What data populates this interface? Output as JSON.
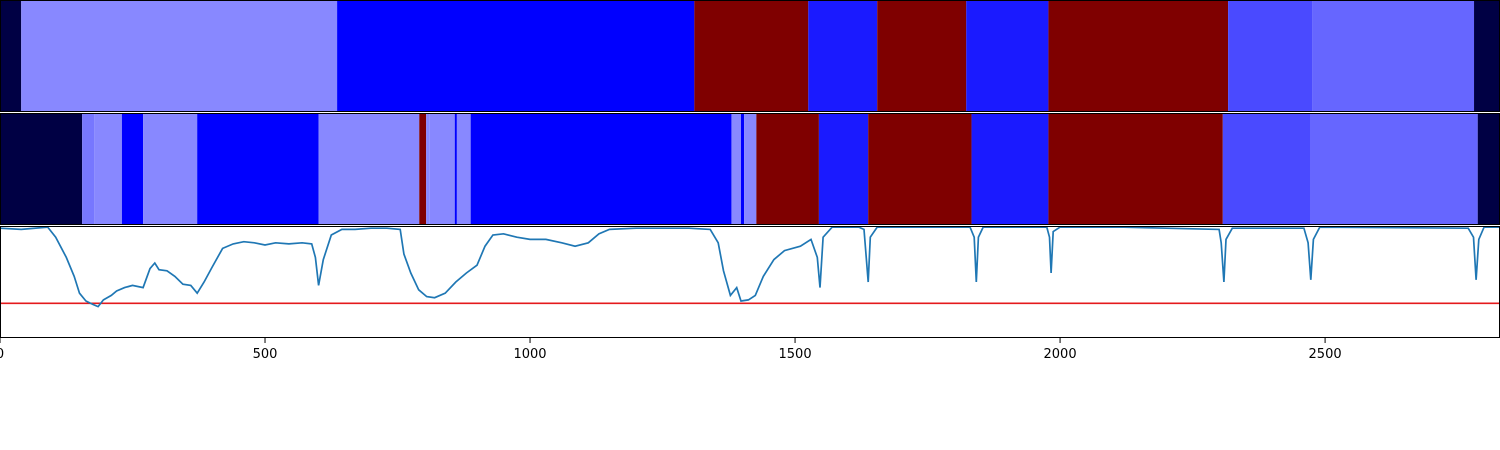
{
  "chart_data": {
    "type": "segmentation-with-line",
    "x_domain": [
      0,
      2830
    ],
    "x_ticks": [
      {
        "value": 0,
        "label": "0"
      },
      {
        "value": 500,
        "label": "500"
      },
      {
        "value": 1000,
        "label": "1000"
      },
      {
        "value": 1500,
        "label": "1500"
      },
      {
        "value": 2000,
        "label": "2000"
      },
      {
        "value": 2500,
        "label": "2500"
      }
    ],
    "segment_tracks": [
      {
        "segments": [
          {
            "start": 0,
            "end": 40,
            "color": "#000044"
          },
          {
            "start": 40,
            "end": 636,
            "color": "#8888ff"
          },
          {
            "start": 636,
            "end": 1310,
            "color": "#0000ff"
          },
          {
            "start": 1310,
            "end": 1525,
            "color": "#7f0000"
          },
          {
            "start": 1525,
            "end": 1655,
            "color": "#1a1aff"
          },
          {
            "start": 1655,
            "end": 1823,
            "color": "#7f0000"
          },
          {
            "start": 1823,
            "end": 1978,
            "color": "#1a1aff"
          },
          {
            "start": 1978,
            "end": 2317,
            "color": "#7f0000"
          },
          {
            "start": 2317,
            "end": 2476,
            "color": "#4a4aff"
          },
          {
            "start": 2476,
            "end": 2781,
            "color": "#6666ff"
          },
          {
            "start": 2781,
            "end": 2830,
            "color": "#000044"
          }
        ]
      },
      {
        "segments": [
          {
            "start": 0,
            "end": 155,
            "color": "#000044"
          },
          {
            "start": 155,
            "end": 178,
            "color": "#7777ff"
          },
          {
            "start": 178,
            "end": 230,
            "color": "#8888ff"
          },
          {
            "start": 230,
            "end": 270,
            "color": "#0000ff"
          },
          {
            "start": 270,
            "end": 372,
            "color": "#8888ff"
          },
          {
            "start": 372,
            "end": 601,
            "color": "#0000ff"
          },
          {
            "start": 601,
            "end": 791,
            "color": "#8888ff"
          },
          {
            "start": 791,
            "end": 804,
            "color": "#7f0000"
          },
          {
            "start": 804,
            "end": 810,
            "color": "#8888ff"
          },
          {
            "start": 810,
            "end": 858,
            "color": "#8888ff"
          },
          {
            "start": 858,
            "end": 862,
            "color": "#0000ff"
          },
          {
            "start": 862,
            "end": 888,
            "color": "#8888ff"
          },
          {
            "start": 888,
            "end": 1380,
            "color": "#0000ff"
          },
          {
            "start": 1380,
            "end": 1398,
            "color": "#8888ff"
          },
          {
            "start": 1398,
            "end": 1404,
            "color": "#0000ff"
          },
          {
            "start": 1404,
            "end": 1427,
            "color": "#8888ff"
          },
          {
            "start": 1427,
            "end": 1545,
            "color": "#7f0000"
          },
          {
            "start": 1545,
            "end": 1638,
            "color": "#1a1aff"
          },
          {
            "start": 1638,
            "end": 1833,
            "color": "#7f0000"
          },
          {
            "start": 1833,
            "end": 1978,
            "color": "#1a1aff"
          },
          {
            "start": 1978,
            "end": 2307,
            "color": "#7f0000"
          },
          {
            "start": 2307,
            "end": 2473,
            "color": "#4a4aff"
          },
          {
            "start": 2473,
            "end": 2788,
            "color": "#6666ff"
          },
          {
            "start": 2788,
            "end": 2830,
            "color": "#000044"
          }
        ]
      }
    ],
    "line_series": {
      "color": "#1f77b4",
      "y_domain": [
        0,
        1
      ],
      "points": [
        [
          0,
          0.98
        ],
        [
          40,
          0.97
        ],
        [
          90,
          0.99
        ],
        [
          105,
          0.9
        ],
        [
          125,
          0.72
        ],
        [
          140,
          0.55
        ],
        [
          150,
          0.4
        ],
        [
          162,
          0.33
        ],
        [
          175,
          0.3
        ],
        [
          185,
          0.28
        ],
        [
          195,
          0.34
        ],
        [
          210,
          0.38
        ],
        [
          220,
          0.42
        ],
        [
          235,
          0.45
        ],
        [
          250,
          0.47
        ],
        [
          270,
          0.45
        ],
        [
          283,
          0.62
        ],
        [
          292,
          0.67
        ],
        [
          300,
          0.61
        ],
        [
          315,
          0.6
        ],
        [
          330,
          0.55
        ],
        [
          345,
          0.48
        ],
        [
          360,
          0.47
        ],
        [
          372,
          0.4
        ],
        [
          385,
          0.5
        ],
        [
          400,
          0.63
        ],
        [
          420,
          0.8
        ],
        [
          440,
          0.84
        ],
        [
          460,
          0.86
        ],
        [
          480,
          0.85
        ],
        [
          500,
          0.83
        ],
        [
          520,
          0.85
        ],
        [
          545,
          0.84
        ],
        [
          570,
          0.85
        ],
        [
          588,
          0.84
        ],
        [
          595,
          0.72
        ],
        [
          601,
          0.47
        ],
        [
          610,
          0.7
        ],
        [
          625,
          0.92
        ],
        [
          645,
          0.97
        ],
        [
          670,
          0.97
        ],
        [
          700,
          0.98
        ],
        [
          730,
          0.98
        ],
        [
          755,
          0.97
        ],
        [
          762,
          0.75
        ],
        [
          775,
          0.58
        ],
        [
          790,
          0.43
        ],
        [
          805,
          0.37
        ],
        [
          820,
          0.36
        ],
        [
          840,
          0.4
        ],
        [
          860,
          0.5
        ],
        [
          880,
          0.58
        ],
        [
          900,
          0.65
        ],
        [
          915,
          0.82
        ],
        [
          930,
          0.92
        ],
        [
          950,
          0.93
        ],
        [
          975,
          0.9
        ],
        [
          1000,
          0.88
        ],
        [
          1030,
          0.88
        ],
        [
          1060,
          0.85
        ],
        [
          1085,
          0.82
        ],
        [
          1110,
          0.85
        ],
        [
          1130,
          0.93
        ],
        [
          1150,
          0.97
        ],
        [
          1200,
          0.98
        ],
        [
          1260,
          0.98
        ],
        [
          1300,
          0.98
        ],
        [
          1340,
          0.97
        ],
        [
          1355,
          0.85
        ],
        [
          1365,
          0.6
        ],
        [
          1378,
          0.38
        ],
        [
          1390,
          0.45
        ],
        [
          1398,
          0.33
        ],
        [
          1412,
          0.34
        ],
        [
          1425,
          0.38
        ],
        [
          1440,
          0.55
        ],
        [
          1460,
          0.7
        ],
        [
          1480,
          0.78
        ],
        [
          1510,
          0.82
        ],
        [
          1530,
          0.88
        ],
        [
          1542,
          0.72
        ],
        [
          1547,
          0.45
        ],
        [
          1553,
          0.9
        ],
        [
          1570,
          0.99
        ],
        [
          1620,
          0.99
        ],
        [
          1630,
          0.97
        ],
        [
          1638,
          0.5
        ],
        [
          1642,
          0.9
        ],
        [
          1655,
          0.99
        ],
        [
          1830,
          0.99
        ],
        [
          1838,
          0.9
        ],
        [
          1842,
          0.5
        ],
        [
          1846,
          0.9
        ],
        [
          1855,
          0.99
        ],
        [
          1975,
          0.99
        ],
        [
          1980,
          0.9
        ],
        [
          1983,
          0.58
        ],
        [
          1987,
          0.95
        ],
        [
          2000,
          0.99
        ],
        [
          2120,
          0.99
        ],
        [
          2200,
          0.98
        ],
        [
          2300,
          0.97
        ],
        [
          2304,
          0.85
        ],
        [
          2309,
          0.5
        ],
        [
          2313,
          0.88
        ],
        [
          2325,
          0.98
        ],
        [
          2460,
          0.98
        ],
        [
          2468,
          0.85
        ],
        [
          2473,
          0.52
        ],
        [
          2478,
          0.88
        ],
        [
          2490,
          0.99
        ],
        [
          2770,
          0.98
        ],
        [
          2780,
          0.9
        ],
        [
          2785,
          0.52
        ],
        [
          2790,
          0.88
        ],
        [
          2800,
          0.99
        ],
        [
          2830,
          0.99
        ]
      ]
    },
    "threshold": {
      "y": 0.31,
      "color": "#e41a1c"
    }
  }
}
